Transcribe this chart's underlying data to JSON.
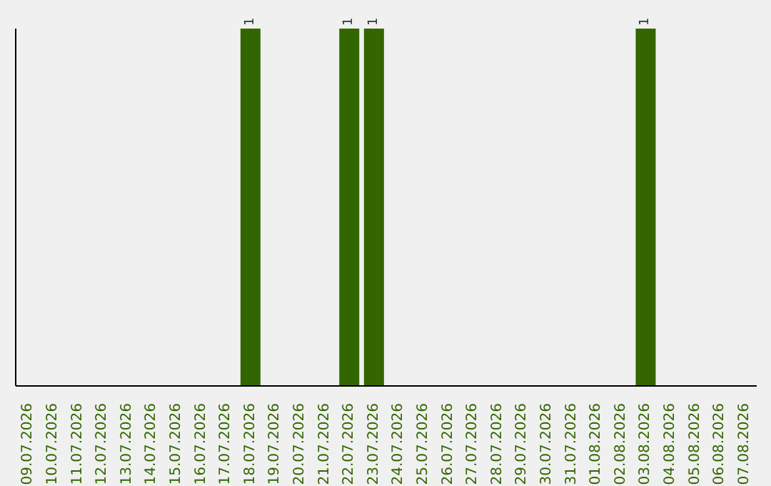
{
  "chart_data": {
    "type": "bar",
    "categories": [
      "09.07.2026",
      "10.07.2026",
      "11.07.2026",
      "12.07.2026",
      "13.07.2026",
      "14.07.2026",
      "15.07.2026",
      "16.07.2026",
      "17.07.2026",
      "18.07.2026",
      "19.07.2026",
      "20.07.2026",
      "21.07.2026",
      "22.07.2026",
      "23.07.2026",
      "24.07.2026",
      "25.07.2026",
      "26.07.2026",
      "27.07.2026",
      "28.07.2026",
      "29.07.2026",
      "30.07.2026",
      "31.07.2026",
      "01.08.2026",
      "02.08.2026",
      "03.08.2026",
      "04.08.2026",
      "05.08.2026",
      "06.08.2026",
      "07.08.2026"
    ],
    "values": [
      null,
      null,
      null,
      null,
      null,
      null,
      null,
      null,
      null,
      1,
      null,
      null,
      null,
      1,
      1,
      null,
      null,
      null,
      null,
      null,
      null,
      null,
      null,
      null,
      null,
      1,
      null,
      null,
      null,
      null
    ],
    "data_labels": true,
    "color": "#336600"
  }
}
